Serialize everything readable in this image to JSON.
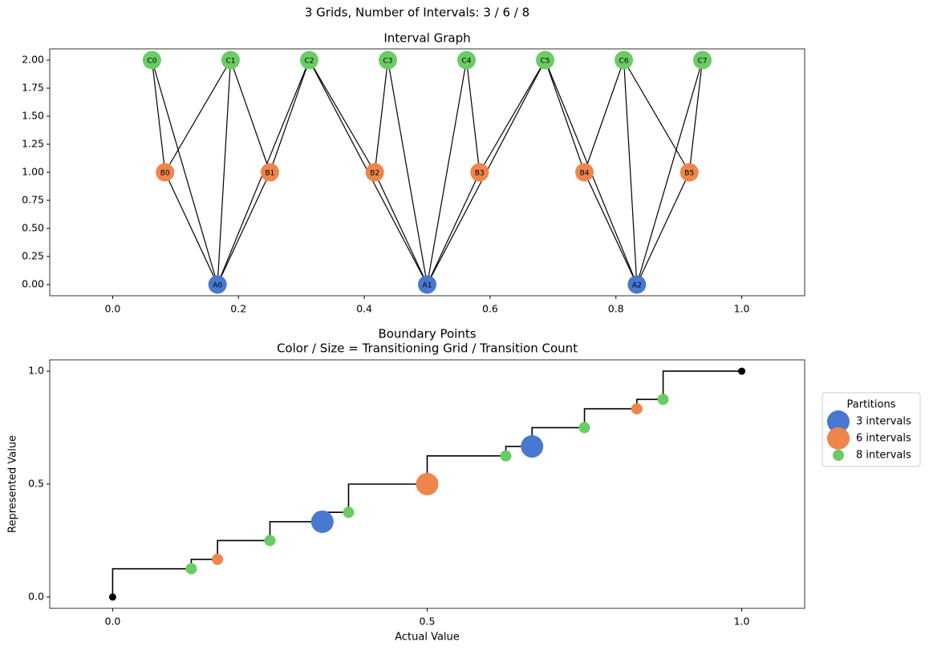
{
  "suptitle": "3 Grids, Number of Intervals: 3 / 6 / 8",
  "chart_data": [
    {
      "type": "graph",
      "title": "Interval Graph",
      "xlim": [
        -0.1,
        1.1
      ],
      "ylim": [
        -0.1,
        2.1
      ],
      "xticks": [
        {
          "value": 0,
          "label": "0.0"
        },
        {
          "value": 0.2,
          "label": "0.2"
        },
        {
          "value": 0.4,
          "label": "0.4"
        },
        {
          "value": 0.6,
          "label": "0.6"
        },
        {
          "value": 0.8,
          "label": "0.8"
        },
        {
          "value": 1,
          "label": "1.0"
        }
      ],
      "yticks": [
        {
          "value": 0,
          "label": "0.00"
        },
        {
          "value": 0.25,
          "label": "0.25"
        },
        {
          "value": 0.5,
          "label": "0.50"
        },
        {
          "value": 0.75,
          "label": "0.75"
        },
        {
          "value": 1,
          "label": "1.00"
        },
        {
          "value": 1.25,
          "label": "1.25"
        },
        {
          "value": 1.5,
          "label": "1.50"
        },
        {
          "value": 1.75,
          "label": "1.75"
        },
        {
          "value": 2,
          "label": "2.00"
        }
      ],
      "nodes": [
        {
          "label": "A0",
          "x": 0.1667,
          "y": 0,
          "color": "#4878d0"
        },
        {
          "label": "A1",
          "x": 0.5,
          "y": 0,
          "color": "#4878d0"
        },
        {
          "label": "A2",
          "x": 0.8333,
          "y": 0,
          "color": "#4878d0"
        },
        {
          "label": "B0",
          "x": 0.0833,
          "y": 1,
          "color": "#ee854a"
        },
        {
          "label": "B1",
          "x": 0.25,
          "y": 1,
          "color": "#ee854a"
        },
        {
          "label": "B2",
          "x": 0.4167,
          "y": 1,
          "color": "#ee854a"
        },
        {
          "label": "B3",
          "x": 0.5833,
          "y": 1,
          "color": "#ee854a"
        },
        {
          "label": "B4",
          "x": 0.75,
          "y": 1,
          "color": "#ee854a"
        },
        {
          "label": "B5",
          "x": 0.9167,
          "y": 1,
          "color": "#ee854a"
        },
        {
          "label": "C0",
          "x": 0.0625,
          "y": 2,
          "color": "#6acc64"
        },
        {
          "label": "C1",
          "x": 0.1875,
          "y": 2,
          "color": "#6acc64"
        },
        {
          "label": "C2",
          "x": 0.3125,
          "y": 2,
          "color": "#6acc64"
        },
        {
          "label": "C3",
          "x": 0.4375,
          "y": 2,
          "color": "#6acc64"
        },
        {
          "label": "C4",
          "x": 0.5625,
          "y": 2,
          "color": "#6acc64"
        },
        {
          "label": "C5",
          "x": 0.6875,
          "y": 2,
          "color": "#6acc64"
        },
        {
          "label": "C6",
          "x": 0.8125,
          "y": 2,
          "color": "#6acc64"
        },
        {
          "label": "C7",
          "x": 0.9375,
          "y": 2,
          "color": "#6acc64"
        }
      ],
      "edges": [
        [
          0,
          3
        ],
        [
          0,
          4
        ],
        [
          1,
          5
        ],
        [
          1,
          6
        ],
        [
          2,
          7
        ],
        [
          2,
          8
        ],
        [
          0,
          9
        ],
        [
          0,
          10
        ],
        [
          0,
          11
        ],
        [
          1,
          11
        ],
        [
          1,
          12
        ],
        [
          1,
          13
        ],
        [
          1,
          14
        ],
        [
          2,
          14
        ],
        [
          2,
          15
        ],
        [
          2,
          16
        ],
        [
          3,
          9
        ],
        [
          3,
          10
        ],
        [
          4,
          10
        ],
        [
          4,
          11
        ],
        [
          5,
          11
        ],
        [
          5,
          12
        ],
        [
          6,
          13
        ],
        [
          6,
          14
        ],
        [
          7,
          14
        ],
        [
          7,
          15
        ],
        [
          8,
          15
        ],
        [
          8,
          16
        ]
      ]
    },
    {
      "type": "step-scatter",
      "title": [
        "Boundary Points",
        "Color / Size = Transitioning Grid / Transition Count"
      ],
      "xlabel": "Actual Value",
      "ylabel": "Represented Value",
      "xlim": [
        -0.1,
        1.1
      ],
      "ylim": [
        -0.05,
        1.05
      ],
      "xticks": [
        {
          "value": 0,
          "label": "0.0"
        },
        {
          "value": 0.5,
          "label": "0.5"
        },
        {
          "value": 1,
          "label": "1.0"
        }
      ],
      "yticks": [
        {
          "value": 0,
          "label": "0.0"
        },
        {
          "value": 0.5,
          "label": "0.5"
        },
        {
          "value": 1,
          "label": "1.0"
        }
      ],
      "step": {
        "x": [
          0,
          0.125,
          0.1667,
          0.25,
          0.3333,
          0.375,
          0.5,
          0.625,
          0.6667,
          0.75,
          0.8333,
          0.875,
          1
        ],
        "values": [
          0.125,
          0.1667,
          0.25,
          0.3333,
          0.375,
          0.5,
          0.625,
          0.6667,
          0.75,
          0.8333,
          0.875,
          1,
          1
        ]
      },
      "endpoints": {
        "x": [
          0,
          1
        ],
        "values": [
          0,
          1
        ],
        "color": "#000000"
      },
      "legend_title": "Partitions",
      "legend": "right",
      "series": [
        {
          "name": "3 intervals",
          "color": "#4878d0",
          "x": [
            0.3333,
            0.6667
          ],
          "values": [
            0.3333,
            0.6667
          ],
          "sizes": [
            2,
            2
          ]
        },
        {
          "name": "6 intervals",
          "color": "#ee854a",
          "x": [
            0.1667,
            0.5,
            0.8333
          ],
          "values": [
            0.1667,
            0.5,
            0.8333
          ],
          "sizes": [
            1,
            2,
            1
          ]
        },
        {
          "name": "8 intervals",
          "color": "#6acc64",
          "x": [
            0.125,
            0.25,
            0.375,
            0.625,
            0.75,
            0.875
          ],
          "values": [
            0.125,
            0.25,
            0.375,
            0.625,
            0.75,
            0.875
          ],
          "sizes": [
            1,
            1,
            1,
            1,
            1,
            1
          ]
        }
      ]
    }
  ]
}
